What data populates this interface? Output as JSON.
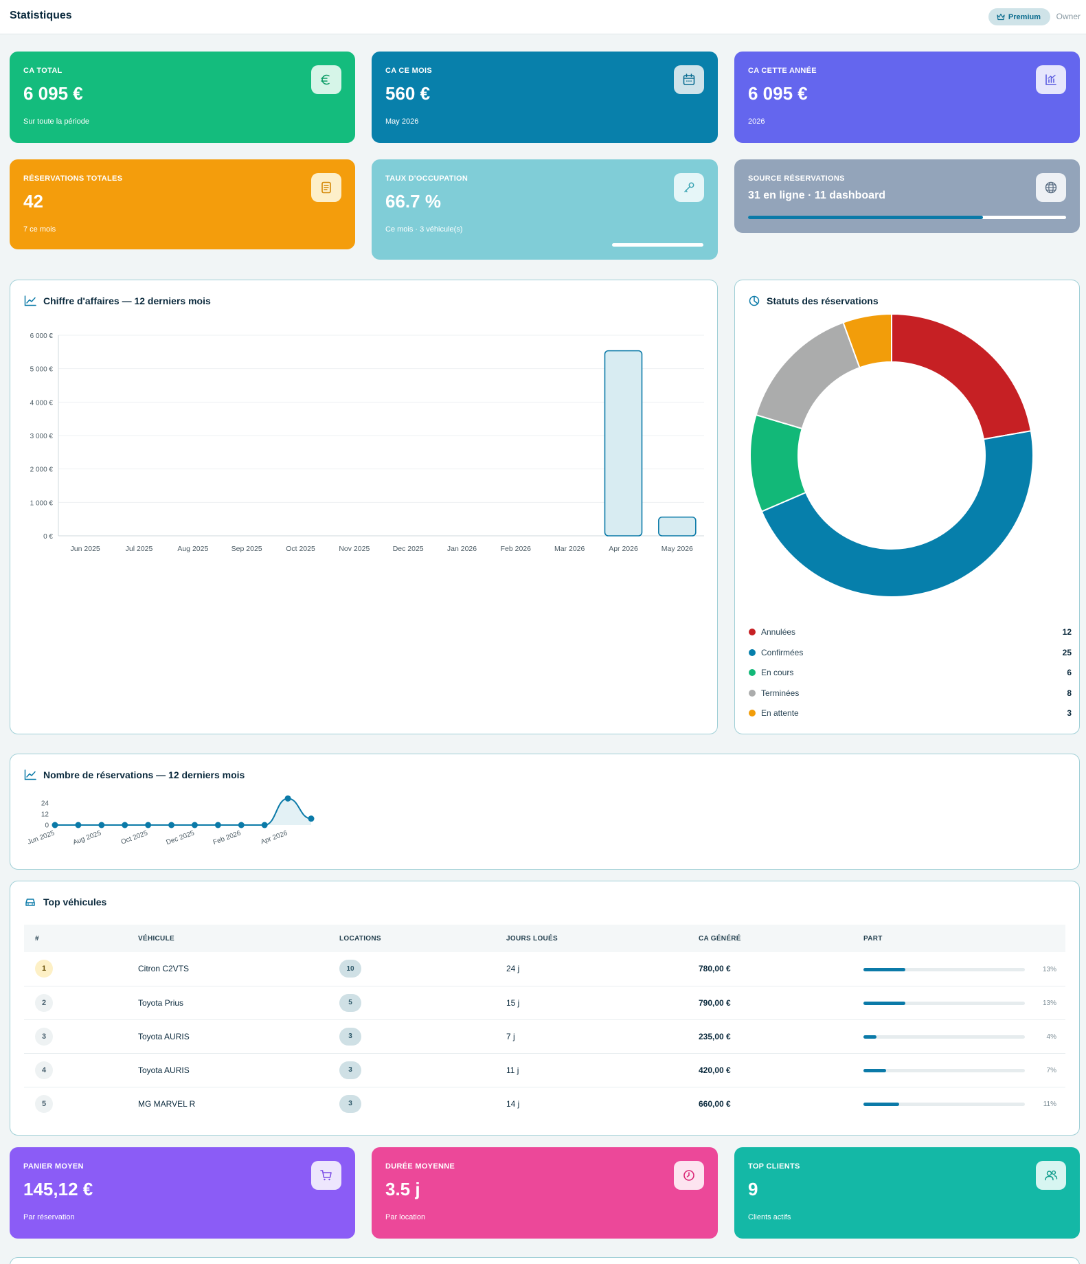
{
  "header": {
    "title": "Statistiques",
    "premium": "Premium",
    "role": "Owner"
  },
  "kpis": {
    "ca_total": {
      "label": "CA TOTAL",
      "value": "6 095 €",
      "sub": "Sur toute la période",
      "color": "#14bc7d"
    },
    "ca_mois": {
      "label": "CA CE MOIS",
      "value": "560 €",
      "sub": "May 2026",
      "color": "#0880ab"
    },
    "ca_annee": {
      "label": "CA CETTE ANNÉE",
      "value": "6 095 €",
      "sub": "2026",
      "color": "#6466ee"
    },
    "reservations": {
      "label": "RÉSERVATIONS TOTALES",
      "value": "42",
      "sub": "7 ce mois",
      "color": "#f49d0c"
    },
    "occupation": {
      "label": "TAUX D'OCCUPATION",
      "value": "66.7 %",
      "sub": "Ce mois · 3 véhicule(s)",
      "progress": 0.667,
      "color": "#80cdd7"
    },
    "source": {
      "label": "SOURCE RÉSERVATIONS",
      "value": "31 en ligne · 11 dashboard",
      "online": 31,
      "dashboard": 11,
      "color": "#93a4ba"
    }
  },
  "revenue_chart": {
    "title": "Chiffre d'affaires — 12 derniers mois",
    "chart_data": {
      "type": "bar",
      "categories": [
        "Jun 2025",
        "Jul 2025",
        "Aug 2025",
        "Sep 2025",
        "Oct 2025",
        "Nov 2025",
        "Dec 2025",
        "Jan 2026",
        "Feb 2026",
        "Mar 2026",
        "Apr 2026",
        "May 2026"
      ],
      "values": [
        0,
        0,
        0,
        0,
        0,
        0,
        0,
        0,
        0,
        0,
        5535,
        560
      ],
      "ylim": [
        0,
        6000
      ],
      "yticks": [
        0,
        1000,
        2000,
        3000,
        4000,
        5000,
        6000
      ],
      "ytick_labels": [
        "0 €",
        "1 000 €",
        "2 000 €",
        "3 000 €",
        "4 000 €",
        "5 000 €",
        "6 000 €"
      ],
      "grid": true
    }
  },
  "status_chart": {
    "title": "Statuts des réservations",
    "chart_data": {
      "type": "pie",
      "labels": [
        "Annulées",
        "Confirmées",
        "En cours",
        "Terminées",
        "En attente"
      ],
      "values": [
        12,
        25,
        6,
        8,
        3
      ],
      "colors": [
        "#c62024",
        "#067fab",
        "#12b878",
        "#abacac",
        "#f29d0a"
      ]
    }
  },
  "count_chart": {
    "title": "Nombre de réservations — 12 derniers mois",
    "chart_data": {
      "type": "line",
      "x": [
        "Jun 2025",
        "Jul 2025",
        "Aug 2025",
        "Sep 2025",
        "Oct 2025",
        "Nov 2025",
        "Dec 2025",
        "Jan 2026",
        "Feb 2026",
        "Mar 2026",
        "Apr 2026",
        "May 2026"
      ],
      "values": [
        0,
        0,
        0,
        0,
        0,
        0,
        0,
        0,
        0,
        0,
        29,
        7
      ],
      "ylim": [
        0,
        30
      ],
      "yticks": [
        0,
        12,
        24
      ],
      "xtick_labels": [
        "Jun 2025",
        "Aug 2025",
        "Oct 2025",
        "Dec 2025",
        "Feb 2026",
        "Apr 2026"
      ]
    }
  },
  "top_vehicles": {
    "title": "Top véhicules",
    "columns": [
      "#",
      "VÉHICULE",
      "LOCATIONS",
      "JOURS LOUÉS",
      "CA GÉNÉRÉ",
      "PART"
    ],
    "rows": [
      {
        "rank": "1",
        "name": "Citron C2VTS",
        "locations": "10",
        "days": "24 j",
        "ca": "780,00 €",
        "share": 0.13,
        "share_label": "13%"
      },
      {
        "rank": "2",
        "name": "Toyota Prius",
        "locations": "5",
        "days": "15 j",
        "ca": "790,00 €",
        "share": 0.13,
        "share_label": "13%"
      },
      {
        "rank": "3",
        "name": "Toyota AURIS",
        "locations": "3",
        "days": "7 j",
        "ca": "235,00 €",
        "share": 0.04,
        "share_label": "4%"
      },
      {
        "rank": "4",
        "name": "Toyota AURIS",
        "locations": "3",
        "days": "11 j",
        "ca": "420,00 €",
        "share": 0.07,
        "share_label": "7%"
      },
      {
        "rank": "5",
        "name": "MG MARVEL R",
        "locations": "3",
        "days": "14 j",
        "ca": "660,00 €",
        "share": 0.11,
        "share_label": "11%"
      }
    ]
  },
  "bottom_kpis": {
    "panier": {
      "label": "PANIER MOYEN",
      "value": "145,12 €",
      "sub": "Par réservation",
      "color": "#8b5cf6"
    },
    "duree": {
      "label": "DURÉE MOYENNE",
      "value": "3.5 j",
      "sub": "Par location",
      "color": "#ec4899"
    },
    "clients": {
      "label": "TOP CLIENTS",
      "value": "9",
      "sub": "Clients actifs",
      "color": "#14b8a6"
    }
  }
}
